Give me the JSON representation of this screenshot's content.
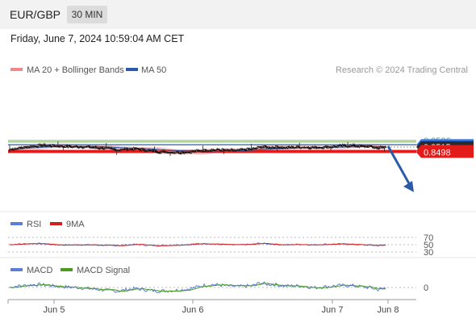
{
  "header": {
    "symbol": "EUR/GBP",
    "timeframe": "30 MIN",
    "timestamp": "Friday, June 7, 2024 10:59:04 AM CET"
  },
  "chart_data": {
    "type": "candlestick",
    "price_panel": {
      "legend": [
        {
          "name": "MA 20 + Bollinger Bands",
          "color": "#f08a8a"
        },
        {
          "name": "MA 50",
          "color": "#2b5aa8"
        }
      ],
      "credit": "Research © 2024 Trading Central",
      "levels": [
        {
          "value": 0.8536,
          "label": "0.8536",
          "type": "resistance",
          "color": "#7ab648"
        },
        {
          "value": 0.8531,
          "label": "0.8531",
          "type": "resistance",
          "color": "#7ab648"
        },
        {
          "value": 0.8522,
          "label": "0.8522",
          "type": "pivot",
          "color": "#2d6fe0"
        },
        {
          "value": 0.8515,
          "label": "0.8515",
          "type": "last",
          "color": "#2b2b2b"
        },
        {
          "value": 0.8503,
          "label": "0.8503",
          "type": "support",
          "color": "#e31b1b"
        },
        {
          "value": 0.8498,
          "label": "0.8498",
          "type": "support",
          "color": "#e31b1b"
        }
      ],
      "close_series": [
        0.8507,
        0.8511,
        0.8515,
        0.8518,
        0.852,
        0.8519,
        0.8518,
        0.8517,
        0.8516,
        0.8516,
        0.8515,
        0.8513,
        0.8511,
        0.8508,
        0.8506,
        0.8508,
        0.8509,
        0.8506,
        0.8503,
        0.85,
        0.8499,
        0.8498,
        0.8498,
        0.8499,
        0.8502,
        0.8505,
        0.8506,
        0.8505,
        0.8504,
        0.8504,
        0.8506,
        0.8508,
        0.8516,
        0.8514,
        0.8515,
        0.8513,
        0.8514,
        0.8515,
        0.8514,
        0.8513,
        0.8515,
        0.8516,
        0.8518,
        0.8519,
        0.8519,
        0.8517,
        0.8516,
        0.8512,
        0.8515
      ],
      "forecast": {
        "from": 0.8515,
        "to": 0.8498,
        "direction": "down",
        "color": "#2b5aa8"
      }
    },
    "rsi_panel": {
      "legend": [
        {
          "name": "RSI",
          "color": "#5b7fd6"
        },
        {
          "name": "9MA",
          "color": "#d11f1f"
        }
      ],
      "levels": [
        "70",
        "50",
        "30"
      ]
    },
    "macd_panel": {
      "legend": [
        {
          "name": "MACD",
          "color": "#5b7fd6"
        },
        {
          "name": "MACD Signal",
          "color": "#4a9c1e"
        }
      ],
      "levels": [
        "0"
      ]
    },
    "x_axis": {
      "ticks": [
        "Jun 5",
        "Jun 6",
        "Jun 7",
        "Jun 8"
      ]
    }
  }
}
